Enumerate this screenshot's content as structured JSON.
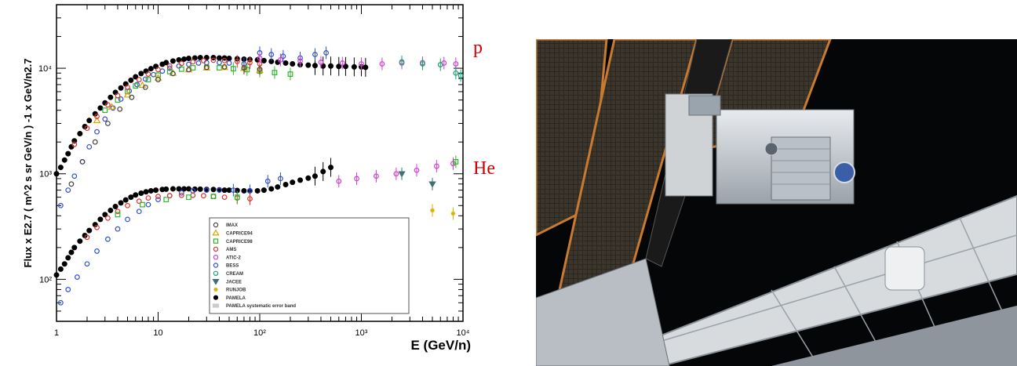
{
  "chart_data": {
    "type": "scatter",
    "title": "",
    "xlabel": "E (GeV/n)",
    "ylabel": "Flux x E2.7 ( m^2 s sr GeV/n ) -1 x GeV/n2.7",
    "xscale": "log",
    "yscale": "log",
    "xlim": [
      1,
      10000
    ],
    "ylim": [
      40,
      40000
    ],
    "x_ticks": [
      "1",
      "10",
      "10²",
      "10³",
      "10⁴"
    ],
    "y_ticks": [
      "10²",
      "10³",
      "10⁴"
    ],
    "grid": false,
    "legend_position": "bottom-right",
    "annotations": [
      {
        "text": "p",
        "near_series": "proton"
      },
      {
        "text": "He",
        "near_series": "helium"
      }
    ],
    "legend": [
      {
        "label": "IMAX",
        "color": "#444444",
        "marker": "circle-open"
      },
      {
        "label": "CAPRICE94",
        "color": "#e0a000",
        "marker": "triangle-open"
      },
      {
        "label": "CAPRICE98",
        "color": "#2fb52f",
        "marker": "square-open"
      },
      {
        "label": "AMS",
        "color": "#e03030",
        "marker": "circle-open"
      },
      {
        "label": "ATIC-2",
        "color": "#d040d0",
        "marker": "circle-open"
      },
      {
        "label": "BESS",
        "color": "#3050d0",
        "marker": "circle-open"
      },
      {
        "label": "CREAM",
        "color": "#20a070",
        "marker": "circle-open"
      },
      {
        "label": "JACEE",
        "color": "#407070",
        "marker": "triangle-down"
      },
      {
        "label": "RUNJOB",
        "color": "#e0b000",
        "marker": "star"
      },
      {
        "label": "PAMELA",
        "color": "#000000",
        "marker": "circle-filled"
      },
      {
        "label": "PAMELA systematic error band",
        "color": "#cccccc",
        "marker": "band"
      }
    ],
    "series": [
      {
        "name": "PAMELA",
        "group": "proton",
        "color": "#000000",
        "marker": "circle-filled",
        "x": [
          1.0,
          1.1,
          1.2,
          1.3,
          1.4,
          1.5,
          1.7,
          1.9,
          2.1,
          2.4,
          2.7,
          3.0,
          3.4,
          3.8,
          4.3,
          4.8,
          5.4,
          6.0,
          6.8,
          7.6,
          8.5,
          9.5,
          11,
          12,
          14,
          16,
          18,
          20,
          23,
          26,
          30,
          35,
          40,
          45,
          50,
          60,
          70,
          80,
          95,
          110,
          130,
          150,
          180,
          210,
          250,
          300,
          350,
          420,
          500,
          600,
          700,
          850,
          1000,
          1100
        ],
        "y": [
          1000,
          1150,
          1350,
          1550,
          1800,
          2050,
          2400,
          2800,
          3200,
          3700,
          4200,
          4700,
          5300,
          5900,
          6500,
          7100,
          7700,
          8300,
          8900,
          9400,
          9900,
          10400,
          10900,
          11300,
          11700,
          12000,
          12200,
          12400,
          12500,
          12600,
          12600,
          12600,
          12500,
          12500,
          12400,
          12300,
          12200,
          12100,
          12000,
          11800,
          11600,
          11400,
          11200,
          11000,
          10800,
          10700,
          10600,
          10500,
          10500,
          10400,
          10400,
          10300,
          10300,
          10200
        ]
      },
      {
        "name": "BESS",
        "group": "proton",
        "color": "#3050d0",
        "marker": "circle-open",
        "x": [
          1.1,
          1.3,
          1.5,
          1.8,
          2.1,
          2.5,
          3.0,
          3.6,
          4.3,
          5.2,
          6.2,
          7.5,
          9.0,
          11,
          13,
          16,
          20,
          25,
          30,
          40,
          50,
          70,
          100,
          130,
          170,
          250,
          350,
          450
        ],
        "y": [
          500,
          700,
          950,
          1300,
          1800,
          2500,
          3300,
          4200,
          5100,
          6100,
          7000,
          7900,
          8700,
          9400,
          10000,
          10500,
          10900,
          11200,
          11300,
          11300,
          11200,
          11000,
          14000,
          13500,
          13000,
          12500,
          13500,
          14000
        ]
      },
      {
        "name": "CAPRICE98",
        "group": "proton",
        "color": "#2fb52f",
        "marker": "square-open",
        "x": [
          3,
          4,
          5,
          6,
          8,
          10,
          13,
          17,
          22,
          30,
          40,
          55,
          75,
          100,
          140,
          200
        ],
        "y": [
          4000,
          5000,
          6000,
          6800,
          7800,
          8600,
          9300,
          9800,
          10100,
          10200,
          10100,
          9900,
          9700,
          9400,
          9100,
          8800
        ]
      },
      {
        "name": "CAPRICE94",
        "group": "proton",
        "color": "#e0a000",
        "marker": "triangle-open",
        "x": [
          2.5,
          3.5,
          5,
          7,
          10,
          14,
          20,
          30,
          45,
          70,
          100
        ],
        "y": [
          3200,
          4300,
          5600,
          6900,
          8100,
          9000,
          9700,
          10100,
          10200,
          10000,
          9600
        ]
      },
      {
        "name": "AMS",
        "group": "proton",
        "color": "#e03030",
        "marker": "circle-open",
        "x": [
          1.5,
          2,
          2.5,
          3.2,
          4,
          5,
          6.5,
          8,
          10,
          13,
          17,
          22,
          28,
          35,
          45,
          60,
          80,
          100
        ],
        "y": [
          1900,
          2700,
          3500,
          4500,
          5500,
          6600,
          7800,
          8800,
          9700,
          10500,
          11100,
          11500,
          11800,
          11900,
          11800,
          11600,
          11300,
          11000
        ]
      },
      {
        "name": "IMAX",
        "group": "proton",
        "color": "#444444",
        "marker": "circle-open",
        "x": [
          1.4,
          1.8,
          2.4,
          3.2,
          4.2,
          5.5,
          7.5,
          10,
          14,
          20,
          30,
          45,
          70,
          100
        ],
        "y": [
          800,
          1300,
          2000,
          3000,
          4100,
          5300,
          6600,
          7800,
          8900,
          9700,
          10200,
          10300,
          10100,
          9800
        ]
      },
      {
        "name": "ATIC-2",
        "group": "proton",
        "color": "#d040d0",
        "marker": "circle-open",
        "x": [
          100,
          160,
          250,
          400,
          650,
          1000,
          1600,
          2500,
          4000,
          6500,
          8500
        ],
        "y": [
          12500,
          12000,
          11700,
          11400,
          11200,
          11000,
          11000,
          11200,
          11300,
          11200,
          11000
        ]
      },
      {
        "name": "CREAM",
        "group": "proton",
        "color": "#20a070",
        "marker": "circle-open",
        "x": [
          2500,
          4000,
          6000,
          8500,
          9500
        ],
        "y": [
          11500,
          11000,
          10800,
          9000,
          8500
        ]
      },
      {
        "name": "PAMELA",
        "group": "helium",
        "color": "#000000",
        "marker": "circle-filled",
        "x": [
          1.0,
          1.1,
          1.2,
          1.3,
          1.4,
          1.5,
          1.7,
          1.9,
          2.1,
          2.4,
          2.7,
          3.0,
          3.4,
          3.8,
          4.3,
          4.8,
          5.4,
          6.0,
          6.8,
          7.6,
          8.5,
          9.5,
          11,
          12,
          14,
          16,
          18,
          20,
          23,
          26,
          30,
          35,
          40,
          45,
          50,
          60,
          70,
          80,
          95,
          110,
          130,
          150,
          180,
          210,
          250,
          300,
          350,
          420,
          500
        ],
        "y": [
          110,
          125,
          140,
          160,
          180,
          200,
          230,
          260,
          290,
          330,
          370,
          410,
          450,
          490,
          530,
          565,
          600,
          630,
          655,
          675,
          690,
          700,
          710,
          715,
          720,
          720,
          720,
          720,
          715,
          715,
          710,
          710,
          705,
          700,
          700,
          695,
          690,
          690,
          690,
          700,
          720,
          750,
          790,
          830,
          870,
          910,
          950,
          1050,
          1150
        ]
      },
      {
        "name": "BESS",
        "group": "helium",
        "color": "#3050d0",
        "marker": "circle-open",
        "x": [
          1.1,
          1.3,
          1.6,
          2,
          2.5,
          3.2,
          4,
          5,
          6.5,
          8,
          10,
          13,
          17,
          22,
          30,
          40,
          55,
          80,
          120,
          160
        ],
        "y": [
          60,
          80,
          105,
          140,
          185,
          240,
          300,
          370,
          440,
          510,
          570,
          620,
          660,
          690,
          700,
          700,
          700,
          690,
          850,
          900
        ]
      },
      {
        "name": "AMS",
        "group": "helium",
        "color": "#e03030",
        "marker": "circle-open",
        "x": [
          2,
          2.5,
          3.2,
          4,
          5,
          6.5,
          8,
          10,
          13,
          17,
          22,
          28,
          35,
          45,
          60,
          80
        ],
        "y": [
          250,
          310,
          380,
          440,
          500,
          550,
          590,
          610,
          620,
          625,
          625,
          620,
          610,
          600,
          590,
          580
        ]
      },
      {
        "name": "ATIC-2",
        "group": "helium",
        "color": "#d040d0",
        "marker": "circle-open",
        "x": [
          600,
          900,
          1400,
          2200,
          3500,
          5500,
          8000
        ],
        "y": [
          850,
          900,
          950,
          1000,
          1080,
          1180,
          1250
        ]
      },
      {
        "name": "CAPRICE98",
        "group": "helium",
        "color": "#2fb52f",
        "marker": "square-open",
        "x": [
          4,
          7,
          12,
          20,
          35,
          60,
          8500
        ],
        "y": [
          410,
          510,
          570,
          600,
          610,
          600,
          1300
        ]
      },
      {
        "name": "JACEE",
        "group": "helium",
        "color": "#407070",
        "marker": "triangle-down",
        "x": [
          2500,
          5000
        ],
        "y": [
          1000,
          800
        ]
      },
      {
        "name": "RUNJOB",
        "group": "helium",
        "color": "#e0b000",
        "marker": "star",
        "x": [
          5000,
          8000
        ],
        "y": [
          450,
          420
        ]
      }
    ]
  },
  "photo": {
    "subject": "space-station-photo"
  }
}
